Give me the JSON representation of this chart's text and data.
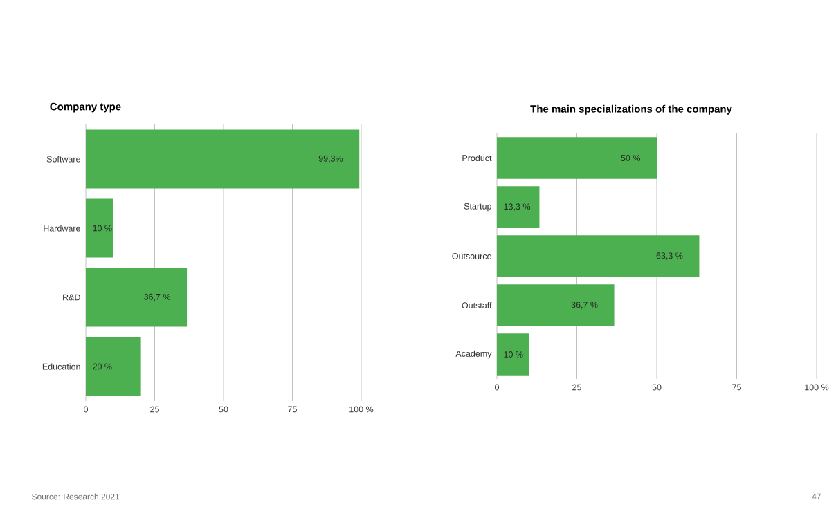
{
  "chart_data": [
    {
      "type": "bar",
      "orientation": "horizontal",
      "title": "Company type",
      "categories": [
        "Software",
        "Hardware",
        "R&D",
        "Education"
      ],
      "values": [
        99.3,
        10,
        36.7,
        20
      ],
      "color": "#4caf50",
      "value_labels": [
        "99,3%",
        "10 %",
        "36,7 %",
        "20 %"
      ],
      "xlim": [
        0,
        100
      ],
      "xticks": [
        0,
        25,
        50,
        75,
        {
          "value": 100,
          "label": "100 %"
        }
      ],
      "grid": "x",
      "annotations": [
        "Source: Research 2021"
      ]
    },
    {
      "type": "bar",
      "orientation": "horizontal",
      "title": "The main specializations of the company",
      "categories": [
        "Product",
        "Startup",
        "Outsource",
        "Outstaff",
        "Academy"
      ],
      "values": [
        50,
        13.3,
        63.3,
        36.7,
        10
      ],
      "color": "#4caf50",
      "value_labels": [
        "50 %",
        "13,3 %",
        "63,3 %",
        "36,7 %",
        "10 %"
      ],
      "xlim": [
        0,
        100
      ],
      "xticks": [
        0,
        25,
        50,
        75,
        {
          "value": 100,
          "label": "100 %"
        }
      ],
      "grid": "x",
      "annotations": [
        "47"
      ]
    }
  ]
}
